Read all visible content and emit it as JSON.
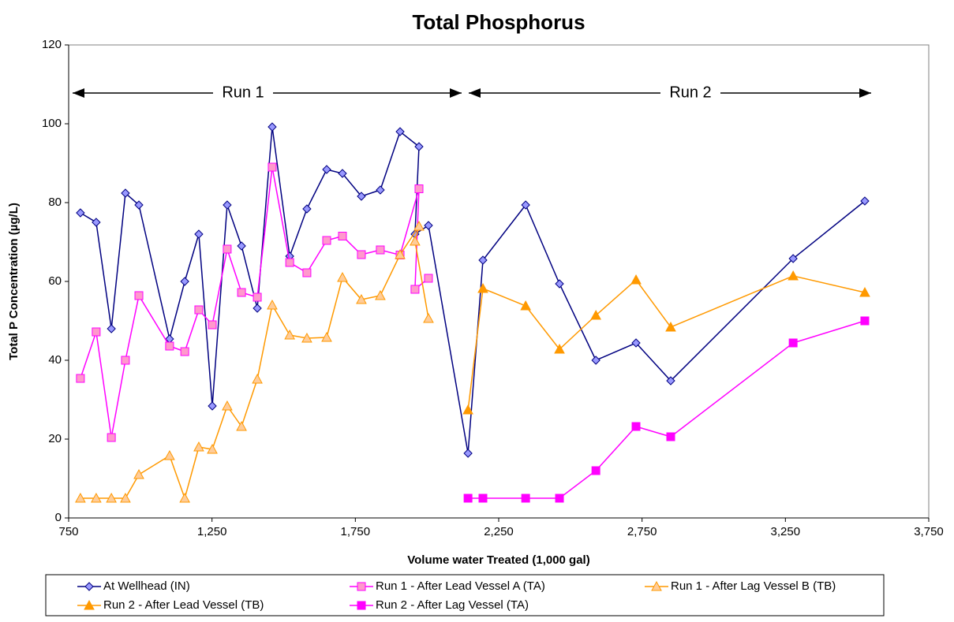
{
  "chart_data": {
    "type": "line",
    "title": "Total Phosphorus",
    "x_label": "Volume water Treated (1,000 gal)",
    "y_label": "Total P Concentration (µg/L)",
    "annotations": [
      "Run 1",
      "Run 2"
    ],
    "xlim": [
      750,
      3750
    ],
    "xticks": [
      750,
      {
        "value": 1250,
        "label": "1,250"
      },
      {
        "value": 1750,
        "label": "1,750"
      },
      {
        "value": 2250,
        "label": "2,250"
      },
      {
        "value": 2750,
        "label": "2,750"
      },
      {
        "value": 3250,
        "label": "3,250"
      },
      {
        "value": 3750,
        "label": "3,750"
      }
    ],
    "ylim": [
      0,
      120
    ],
    "yticks": [
      0,
      20,
      40,
      60,
      80,
      100,
      120
    ],
    "series": [
      {
        "name": "At Wellhead (IN)",
        "color": "#000080",
        "marker": "diamond",
        "marker_fill": "#9999ff",
        "x": [
          791,
          846,
          899,
          948,
          995,
          1102,
          1155,
          1204,
          1251,
          1303,
          1353,
          1408,
          1460,
          1521,
          1581,
          1650,
          1705,
          1771,
          1837,
          1906,
          1972,
          1958,
          2005,
          2143,
          2195,
          2344,
          2462,
          2589,
          2729,
          2850,
          3277,
          3527
        ],
        "values": [
          77.4,
          75,
          48,
          82.4,
          79.4,
          45.4,
          60,
          72,
          28.4,
          79.4,
          69,
          53.2,
          99.2,
          66.4,
          78.4,
          88.4,
          87.4,
          81.6,
          83.2,
          98,
          94.2,
          72,
          74.2,
          16.4,
          65.4,
          79.4,
          59.4,
          40,
          44.4,
          34.8,
          65.8,
          80.4
        ]
      },
      {
        "name": "Run 1 - After Lead Vessel A (TA)",
        "color": "#ff00ff",
        "marker": "square",
        "marker_fill": "#ff99cc",
        "x": [
          791,
          846,
          899,
          948,
          995,
          1102,
          1155,
          1204,
          1251,
          1303,
          1353,
          1408,
          1460,
          1521,
          1581,
          1650,
          1705,
          1771,
          1837,
          1906,
          1972,
          1958,
          2005
        ],
        "values": [
          35.4,
          47.2,
          20.4,
          40,
          56.4,
          43.6,
          42.2,
          52.8,
          49,
          68.2,
          57.2,
          56,
          89,
          64.8,
          62.2,
          70.4,
          71.5,
          66.8,
          68,
          66.7,
          83.5,
          58,
          60.8
        ]
      },
      {
        "name": "Run 1 - After Lag Vessel B (TB)",
        "color": "#ff9900",
        "marker": "triangle",
        "marker_fill": "#ffcc99",
        "x": [
          791,
          846,
          899,
          948,
          995,
          1102,
          1155,
          1204,
          1251,
          1303,
          1353,
          1408,
          1460,
          1521,
          1581,
          1650,
          1705,
          1771,
          1837,
          1906,
          1972,
          1958,
          2005
        ],
        "values": [
          5,
          5,
          5,
          5,
          11,
          15.8,
          5,
          18,
          17.4,
          28.4,
          23.2,
          35.2,
          54,
          46.4,
          45.6,
          45.8,
          61,
          55.4,
          56.4,
          66.8,
          74,
          70.2,
          50.6
        ]
      },
      {
        "name": "Run 2 - After Lead Vessel (TB)",
        "color": "#ff9900",
        "marker": "triangle",
        "marker_fill": "#ff9900",
        "x": [
          2143,
          2195,
          2344,
          2462,
          2589,
          2729,
          2850,
          3277,
          3527
        ],
        "values": [
          27.4,
          58.2,
          53.8,
          42.8,
          51.4,
          60.4,
          48.4,
          61.4,
          57.2
        ]
      },
      {
        "name": "Run 2 - After Lag Vessel (TA)",
        "color": "#ff00ff",
        "marker": "square",
        "marker_fill": "#ff00ff",
        "x": [
          2143,
          2195,
          2344,
          2462,
          2589,
          2729,
          2850,
          3277,
          3527
        ],
        "values": [
          5,
          5,
          5,
          5,
          12,
          23.2,
          20.6,
          44.4,
          50
        ]
      }
    ]
  }
}
